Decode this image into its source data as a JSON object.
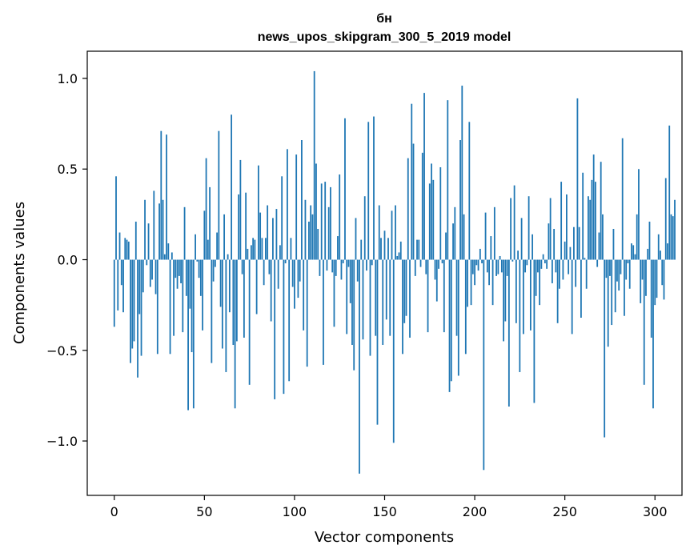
{
  "chart_data": {
    "type": "bar",
    "title": "бн",
    "subtitle": "news_upos_skipgram_300_5_2019 model",
    "xlabel": "Vector components",
    "ylabel": "Components values",
    "xlim": [
      -15,
      315
    ],
    "ylim": [
      -1.3,
      1.15
    ],
    "x_ticks": [
      0,
      50,
      100,
      150,
      200,
      250,
      300
    ],
    "x_tick_labels": [
      "0",
      "50",
      "100",
      "150",
      "200",
      "250",
      "300"
    ],
    "y_ticks": [
      -1.0,
      -0.5,
      0.0,
      0.5,
      1.0
    ],
    "y_tick_labels": [
      "−1.0",
      "−0.5",
      "0.0",
      "0.5",
      "1.0"
    ],
    "bar_color": "#1f77b4",
    "values": [
      -0.37,
      0.46,
      -0.28,
      0.15,
      -0.14,
      -0.29,
      0.12,
      0.11,
      0.1,
      -0.57,
      -0.49,
      -0.45,
      0.21,
      -0.65,
      -0.3,
      -0.53,
      -0.18,
      0.33,
      -0.03,
      0.2,
      -0.15,
      -0.11,
      0.38,
      -0.19,
      -0.52,
      0.31,
      0.71,
      0.33,
      0.03,
      0.69,
      0.09,
      -0.52,
      0.04,
      -0.42,
      -0.1,
      -0.16,
      -0.09,
      -0.13,
      -0.4,
      0.29,
      -0.2,
      -0.83,
      -0.27,
      -0.51,
      -0.82,
      0.14,
      -0.01,
      -0.1,
      -0.2,
      -0.39,
      0.27,
      0.56,
      0.11,
      0.4,
      -0.57,
      -0.12,
      -0.04,
      0.15,
      0.71,
      -0.26,
      -0.49,
      0.25,
      -0.62,
      0.03,
      -0.29,
      0.8,
      -0.47,
      -0.82,
      -0.45,
      0.36,
      0.55,
      -0.08,
      -0.43,
      0.37,
      0.06,
      -0.69,
      0.08,
      0.12,
      0.11,
      -0.3,
      0.52,
      0.26,
      0.12,
      -0.14,
      0.12,
      0.3,
      -0.08,
      -0.34,
      0.23,
      -0.77,
      0.28,
      -0.16,
      0.08,
      0.46,
      -0.74,
      -0.02,
      0.61,
      -0.67,
      0.12,
      -0.15,
      -0.27,
      0.58,
      -0.21,
      -0.12,
      0.66,
      -0.39,
      0.33,
      -0.59,
      0.21,
      0.3,
      0.25,
      1.04,
      0.53,
      0.17,
      -0.09,
      0.42,
      -0.58,
      0.43,
      -0.06,
      0.29,
      0.4,
      -0.07,
      -0.37,
      -0.09,
      0.13,
      0.47,
      -0.11,
      -0.02,
      0.78,
      -0.41,
      -0.04,
      -0.24,
      -0.47,
      -0.61,
      0.23,
      -0.12,
      -1.18,
      0.11,
      -0.44,
      0.35,
      -0.06,
      0.76,
      -0.53,
      -0.03,
      0.79,
      -0.42,
      -0.91,
      0.3,
      0.12,
      -0.47,
      0.16,
      -0.33,
      0.12,
      -0.42,
      0.27,
      -1.01,
      0.3,
      0.02,
      0.04,
      0.1,
      -0.52,
      -0.35,
      -0.31,
      0.56,
      -0.43,
      0.86,
      0.64,
      -0.09,
      0.11,
      0.11,
      -0.04,
      0.59,
      0.92,
      -0.08,
      -0.4,
      0.42,
      0.53,
      0.44,
      -0.11,
      -0.23,
      -0.05,
      0.51,
      -0.02,
      -0.4,
      0.15,
      0.88,
      -0.73,
      -0.67,
      0.2,
      0.29,
      -0.42,
      -0.64,
      0.66,
      0.96,
      0.25,
      -0.52,
      -0.26,
      0.76,
      -0.25,
      -0.08,
      -0.14,
      -0.03,
      -0.06,
      0.06,
      -0.02,
      -1.16,
      0.26,
      -0.07,
      -0.14,
      0.13,
      -0.25,
      0.29,
      -0.09,
      -0.08,
      0.02,
      -0.07,
      -0.45,
      -0.34,
      -0.09,
      -0.81,
      0.34,
      -0.01,
      0.41,
      -0.35,
      0.05,
      -0.62,
      0.23,
      -0.41,
      -0.07,
      -0.03,
      0.35,
      -0.39,
      0.14,
      -0.79,
      -0.2,
      -0.07,
      -0.25,
      -0.05,
      0.03,
      -0.02,
      -0.05,
      0.2,
      0.34,
      -0.13,
      0.17,
      -0.07,
      -0.35,
      -0.16,
      0.43,
      -0.11,
      0.1,
      0.36,
      -0.08,
      0.07,
      -0.41,
      0.18,
      -0.15,
      0.89,
      0.18,
      -0.32,
      0.48,
      0.01,
      -0.16,
      0.35,
      0.33,
      0.44,
      0.58,
      0.43,
      -0.04,
      0.15,
      0.54,
      0.25,
      -0.98,
      -0.1,
      -0.48,
      -0.09,
      -0.36,
      0.17,
      -0.29,
      -0.12,
      -0.17,
      -0.08,
      0.67,
      -0.31,
      -0.11,
      -0.02,
      -0.16,
      0.09,
      0.08,
      0.03,
      0.25,
      0.5,
      -0.24,
      -0.11,
      -0.69,
      -0.2,
      0.06,
      0.21,
      -0.43,
      -0.82,
      -0.25,
      -0.21,
      0.14,
      0.05,
      -0.14,
      -0.22,
      0.45,
      0.09,
      0.74,
      0.25,
      0.24,
      0.33
    ]
  }
}
